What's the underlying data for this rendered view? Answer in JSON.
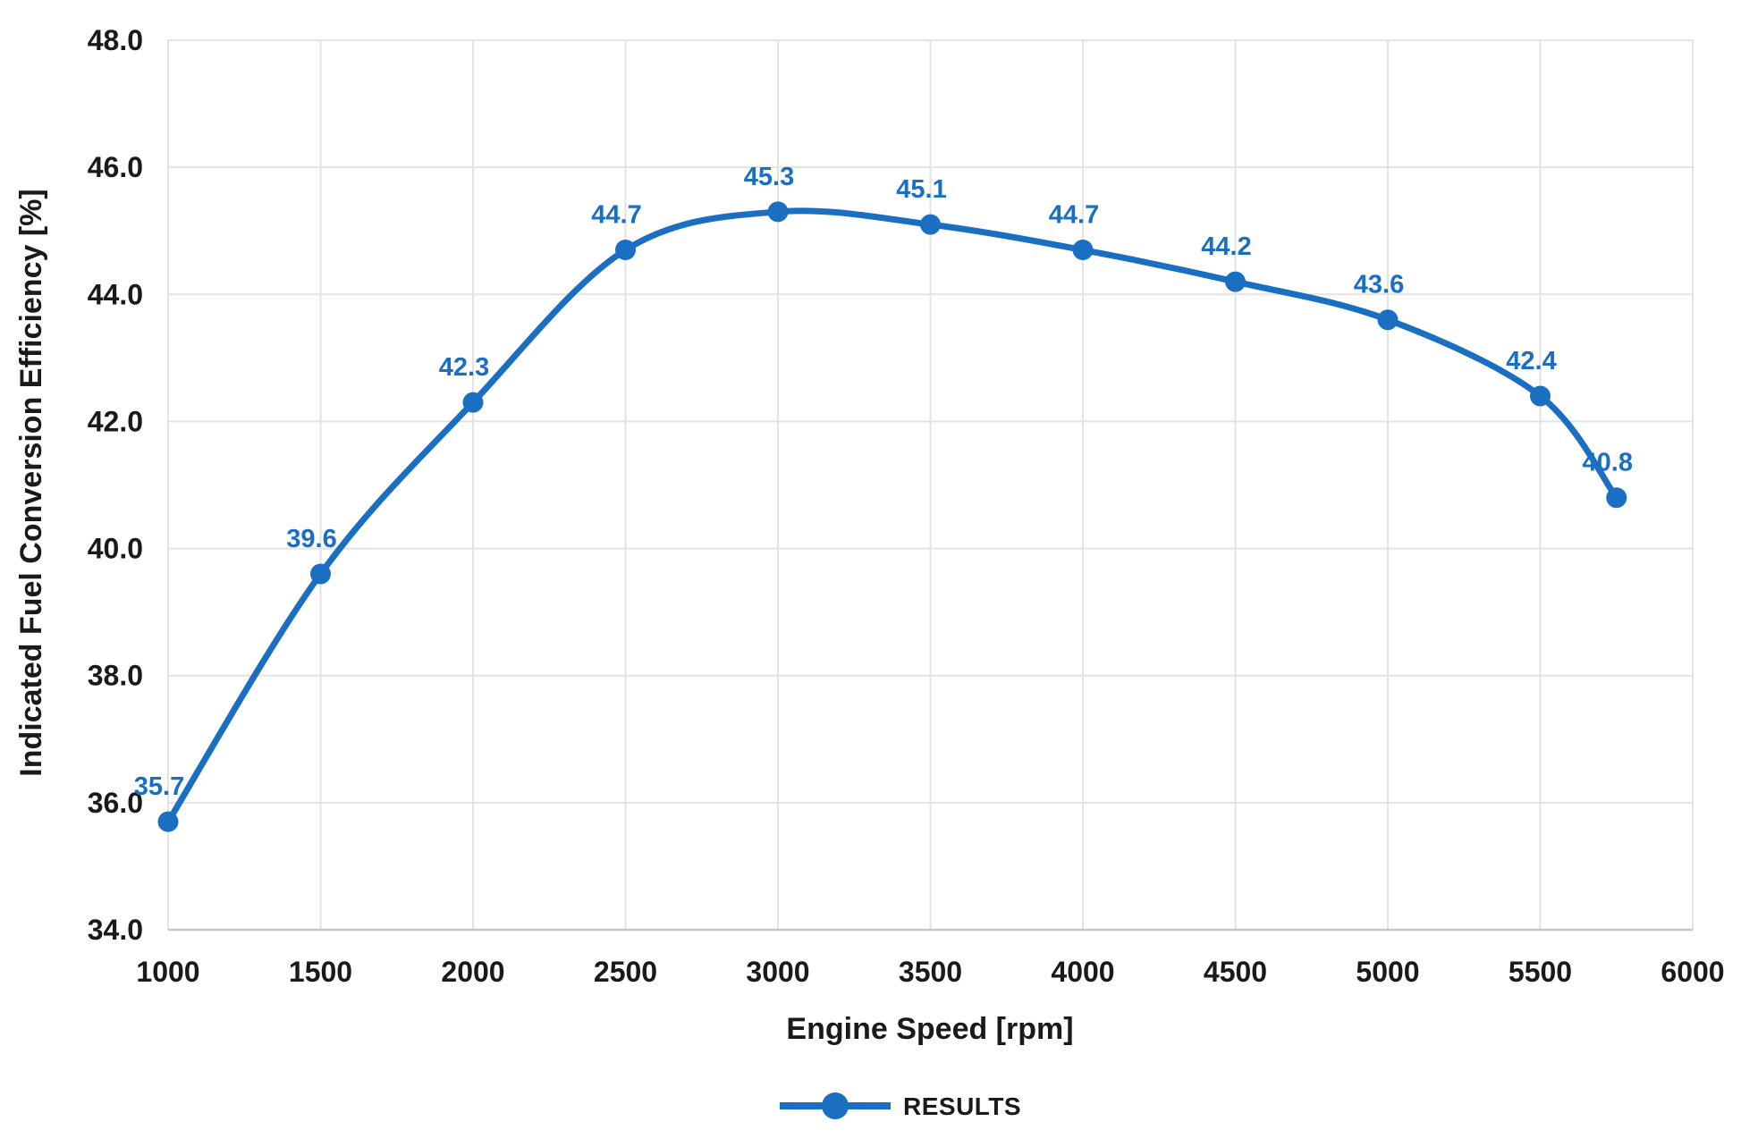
{
  "chart_data": {
    "type": "line",
    "title": "",
    "xlabel": "Engine Speed [rpm]",
    "ylabel": "Indicated Fuel Conversion Efficiency [%]",
    "xlim": [
      1000,
      6000
    ],
    "ylim": [
      34.0,
      48.0
    ],
    "xticks": [
      "1000",
      "1500",
      "2000",
      "2500",
      "3000",
      "3500",
      "4000",
      "4500",
      "5000",
      "5500",
      "6000"
    ],
    "xtick_values": [
      1000,
      1500,
      2000,
      2500,
      3000,
      3500,
      4000,
      4500,
      5000,
      5500,
      6000
    ],
    "yticks": [
      "34.0",
      "36.0",
      "38.0",
      "40.0",
      "42.0",
      "44.0",
      "46.0",
      "48.0"
    ],
    "ytick_values": [
      34.0,
      36.0,
      38.0,
      40.0,
      42.0,
      44.0,
      46.0,
      48.0
    ],
    "grid": true,
    "legend_position": "bottom",
    "series": [
      {
        "name": "RESULTS",
        "x": [
          1000,
          1500,
          2000,
          2500,
          3000,
          3500,
          4000,
          4500,
          5000,
          5500,
          5750
        ],
        "y": [
          35.7,
          39.6,
          42.3,
          44.7,
          45.3,
          45.1,
          44.7,
          44.2,
          43.6,
          42.4,
          40.8
        ],
        "point_labels": [
          "35.7",
          "39.6",
          "42.3",
          "44.7",
          "45.3",
          "45.1",
          "44.7",
          "44.2",
          "43.6",
          "42.4",
          "40.8"
        ],
        "smooth": true,
        "marker": "circle"
      }
    ],
    "colors": {
      "line": "#1B6FC2",
      "marker": "#1B6FC2",
      "data_label": "#1B6FC2",
      "tick_text": "#1a1a1a",
      "axis_title_text": "#1a1a1a",
      "legend_text": "#1a1a1a",
      "gridline": "#e3e3e3",
      "axis_line": "#c7c7c7",
      "background": "#ffffff"
    }
  },
  "legend": {
    "label": "RESULTS"
  }
}
